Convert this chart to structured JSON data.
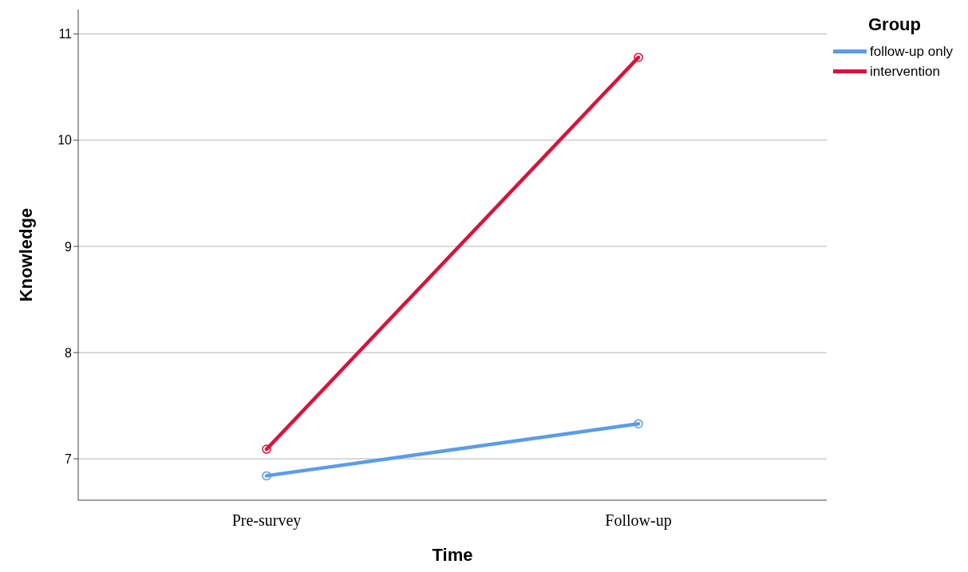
{
  "chart_data": {
    "type": "line",
    "xlabel": "Time",
    "ylabel": "Knowledge",
    "legend_title": "Group",
    "categories": [
      "Pre-survey",
      "Follow-up"
    ],
    "series": [
      {
        "name": "follow-up only",
        "color": "#5b9bea",
        "values": [
          6.84,
          7.33
        ]
      },
      {
        "name": "intervention",
        "color": "#d8133c",
        "values": [
          7.09,
          10.78
        ]
      }
    ],
    "ylim": [
      6.61,
      11.23
    ],
    "yticks": [
      7,
      8,
      9,
      10,
      11
    ],
    "grid": "y",
    "legend": "top right",
    "marker": "circle",
    "line_style": "solid"
  }
}
